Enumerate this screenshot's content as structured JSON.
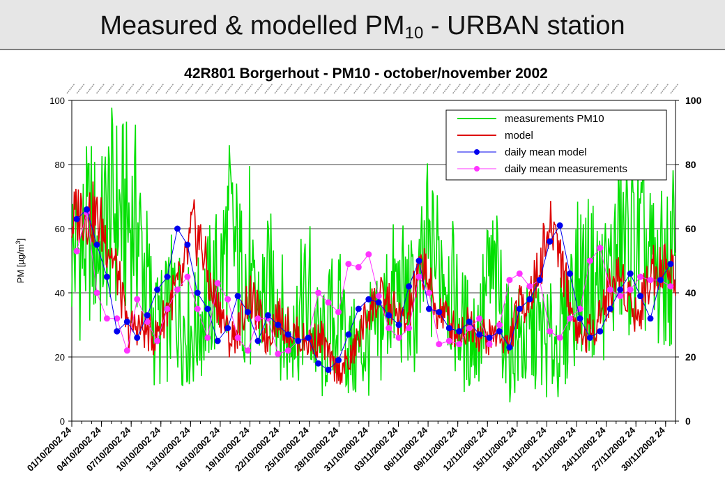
{
  "slide": {
    "title_pre": "Measured & modelled PM",
    "title_sub": "10",
    "title_post": " - URBAN station"
  },
  "chart_data": {
    "type": "line",
    "title": "42R801 Borgerhout - PM10 - october/november 2002",
    "ylabel_pre": "PM [µg/m",
    "ylabel_sup": "3",
    "ylabel_post": "]",
    "ylim": [
      0,
      100
    ],
    "yticks": [
      0,
      20,
      40,
      60,
      80,
      100
    ],
    "y2ticks": [
      0,
      20,
      40,
      60,
      80,
      100
    ],
    "x_start_day": 1,
    "x_end_day": 62,
    "xtick_labels": [
      "01/10/2002 24",
      "04/10/2002 24",
      "07/10/2002 24",
      "10/10/2002 24",
      "13/10/2002 24",
      "16/10/2002 24",
      "19/10/2002 24",
      "22/10/2002 24",
      "25/10/2002 24",
      "28/10/2002 24",
      "31/10/2002 24",
      "03/11/2002 24",
      "06/11/2002 24",
      "09/11/2002 24",
      "12/11/2002 24",
      "15/11/2002 24",
      "18/11/2002 24",
      "21/11/2002 24",
      "24/11/2002 24",
      "27/11/2002 24",
      "30/11/2002 24"
    ],
    "grid": true,
    "legend_position": "top-right",
    "colors": {
      "measurements": "#00e000",
      "model": "#dd0000",
      "daily_model": "#0000ee",
      "daily_meas": "#ff33ff"
    },
    "series": [
      {
        "name": "measurements PM10",
        "style": "line",
        "y": [
          54,
          52,
          60,
          52,
          66,
          65,
          62,
          62,
          45,
          28,
          30,
          38,
          31,
          28,
          33,
          40,
          45,
          60,
          48,
          35,
          35,
          40,
          43,
          26,
          28,
          38,
          28,
          22,
          32,
          32,
          21,
          22,
          25,
          26,
          38,
          40,
          38,
          34,
          48,
          49,
          52,
          39,
          29,
          26,
          29,
          45,
          40,
          24,
          25,
          24,
          29,
          24,
          25,
          27,
          41,
          46,
          44,
          42,
          44,
          56,
          54,
          55,
          50,
          44,
          48,
          45
        ]
      },
      {
        "name": "model",
        "style": "line",
        "y": [
          62,
          66,
          65,
          62,
          55,
          45,
          28,
          30,
          28,
          26,
          33,
          40,
          45,
          60,
          55,
          40,
          35,
          25,
          29,
          39,
          34,
          25,
          33,
          30,
          27,
          25,
          25,
          26,
          17,
          16,
          19,
          27,
          35,
          38,
          37,
          33,
          30,
          42,
          50,
          35,
          34,
          29,
          28,
          31,
          27,
          26,
          28,
          23,
          35,
          38,
          44,
          56,
          61,
          46,
          32,
          26,
          28,
          35,
          41,
          46,
          39,
          32,
          44,
          49,
          48,
          47
        ]
      },
      {
        "name": "daily mean model",
        "style": "points",
        "marker_color": "#0000ee",
        "y": [
          63,
          66,
          55,
          45,
          28,
          31,
          26,
          33,
          41,
          45,
          60,
          55,
          40,
          35,
          25,
          29,
          39,
          34,
          25,
          33,
          30,
          27,
          25,
          26,
          18,
          16,
          19,
          27,
          35,
          38,
          37,
          33,
          30,
          42,
          50,
          35,
          34,
          29,
          28,
          31,
          27,
          26,
          28,
          23,
          35,
          38,
          44,
          56,
          61,
          46,
          32,
          26,
          28,
          35,
          41,
          46,
          39,
          32,
          44,
          49
        ]
      },
      {
        "name": "daily mean measurements",
        "style": "points",
        "marker_color": "#ff33ff",
        "y": [
          53,
          65,
          40,
          32,
          32,
          22,
          38,
          31,
          25,
          35,
          41,
          45,
          35,
          26,
          43,
          38,
          26,
          22,
          32,
          32,
          21,
          22,
          25,
          26,
          40,
          37,
          34,
          49,
          48,
          52,
          39,
          29,
          26,
          29,
          45,
          40,
          24,
          25,
          24,
          29,
          32,
          24,
          30,
          44,
          46,
          42,
          44,
          28,
          26,
          32,
          35,
          50,
          54,
          41,
          39,
          41,
          45,
          44,
          44,
          42
        ]
      }
    ]
  }
}
